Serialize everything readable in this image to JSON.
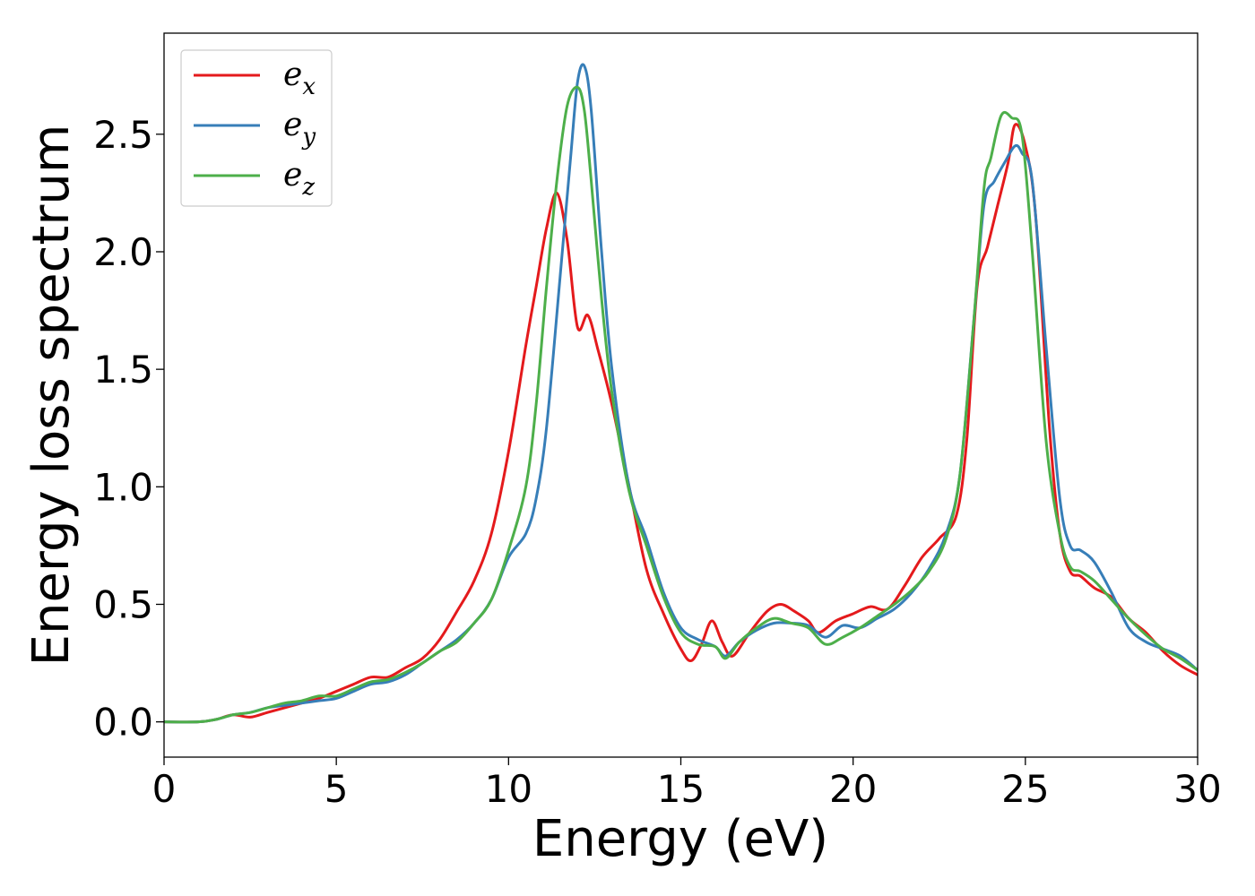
{
  "chart_data": {
    "type": "line",
    "title": "",
    "xlabel": "Energy (eV)",
    "ylabel": "Energy loss spectrum",
    "xlim": [
      0,
      30
    ],
    "ylim": [
      -0.15,
      2.93
    ],
    "xticks": [
      0,
      5,
      10,
      15,
      20,
      25,
      30
    ],
    "xtick_labels": [
      "0",
      "5",
      "10",
      "15",
      "20",
      "25",
      "30"
    ],
    "yticks": [
      0.0,
      0.5,
      1.0,
      1.5,
      2.0,
      2.5
    ],
    "ytick_labels": [
      "0.0",
      "0.5",
      "1.0",
      "1.5",
      "2.0",
      "2.5"
    ],
    "grid": false,
    "legend_position": "top-left",
    "series": [
      {
        "name": "e_x",
        "label_base": "e",
        "label_sub": "x",
        "color": "#e41a1c",
        "x": [
          0,
          1,
          1.5,
          2,
          2.5,
          3,
          3.5,
          4,
          4.5,
          5,
          5.5,
          6,
          6.5,
          7,
          7.5,
          8,
          8.5,
          9,
          9.5,
          10,
          10.5,
          10.8,
          11.1,
          11.4,
          11.7,
          12.0,
          12.3,
          12.6,
          13.0,
          13.5,
          14,
          14.5,
          15,
          15.3,
          15.6,
          15.9,
          16.2,
          16.5,
          17,
          17.5,
          17.9,
          18.3,
          18.7,
          19.0,
          19.5,
          20,
          20.5,
          21,
          21.5,
          22,
          22.5,
          23,
          23.3,
          23.6,
          23.9,
          24.2,
          24.5,
          24.7,
          25.0,
          25.3,
          25.7,
          26.0,
          26.3,
          26.6,
          27,
          27.5,
          28,
          28.5,
          29,
          29.5,
          30
        ],
        "y": [
          0.0,
          0.0,
          0.01,
          0.03,
          0.02,
          0.04,
          0.06,
          0.08,
          0.1,
          0.13,
          0.16,
          0.19,
          0.19,
          0.23,
          0.27,
          0.35,
          0.47,
          0.6,
          0.8,
          1.15,
          1.6,
          1.85,
          2.1,
          2.25,
          2.05,
          1.68,
          1.73,
          1.58,
          1.35,
          1.0,
          0.65,
          0.46,
          0.31,
          0.26,
          0.33,
          0.43,
          0.34,
          0.28,
          0.38,
          0.47,
          0.5,
          0.47,
          0.43,
          0.38,
          0.43,
          0.46,
          0.49,
          0.48,
          0.58,
          0.7,
          0.78,
          0.88,
          1.2,
          1.85,
          2.02,
          2.2,
          2.38,
          2.54,
          2.45,
          2.15,
          1.25,
          0.8,
          0.64,
          0.62,
          0.57,
          0.53,
          0.44,
          0.38,
          0.3,
          0.24,
          0.2
        ]
      },
      {
        "name": "e_y",
        "label_base": "e",
        "label_sub": "y",
        "color": "#377eb8",
        "x": [
          0,
          1,
          1.5,
          2,
          2.5,
          3,
          3.5,
          4,
          4.5,
          5,
          5.5,
          6,
          6.5,
          7,
          7.5,
          8,
          8.5,
          9,
          9.5,
          10,
          10.5,
          10.8,
          11.1,
          11.5,
          11.8,
          12.0,
          12.2,
          12.4,
          12.7,
          13.0,
          13.5,
          14,
          14.5,
          15,
          15.5,
          16,
          16.3,
          16.7,
          17.2,
          17.7,
          18.2,
          18.7,
          19.2,
          19.7,
          20.2,
          20.7,
          21.2,
          21.7,
          22.2,
          22.7,
          23.1,
          23.5,
          23.8,
          24.1,
          24.4,
          24.7,
          24.9,
          25.2,
          25.6,
          26.0,
          26.3,
          26.6,
          27,
          27.5,
          28,
          28.5,
          29,
          29.5,
          30
        ],
        "y": [
          0.0,
          0.0,
          0.01,
          0.03,
          0.04,
          0.06,
          0.07,
          0.08,
          0.09,
          0.1,
          0.13,
          0.16,
          0.17,
          0.2,
          0.25,
          0.3,
          0.35,
          0.42,
          0.52,
          0.7,
          0.8,
          0.95,
          1.25,
          1.9,
          2.4,
          2.72,
          2.79,
          2.6,
          2.0,
          1.5,
          1.0,
          0.78,
          0.55,
          0.4,
          0.35,
          0.32,
          0.28,
          0.34,
          0.39,
          0.42,
          0.42,
          0.41,
          0.36,
          0.41,
          0.4,
          0.44,
          0.48,
          0.55,
          0.65,
          0.8,
          1.05,
          1.7,
          2.2,
          2.3,
          2.38,
          2.45,
          2.42,
          2.3,
          1.6,
          0.95,
          0.75,
          0.73,
          0.68,
          0.55,
          0.4,
          0.34,
          0.31,
          0.28,
          0.22
        ]
      },
      {
        "name": "e_z",
        "label_base": "e",
        "label_sub": "z",
        "color": "#4daf4a",
        "x": [
          0,
          1,
          1.5,
          2,
          2.5,
          3,
          3.5,
          4,
          4.5,
          5,
          5.5,
          6,
          6.5,
          7,
          7.5,
          8,
          8.5,
          9,
          9.5,
          10,
          10.5,
          10.8,
          11.1,
          11.4,
          11.7,
          12.0,
          12.2,
          12.4,
          12.7,
          13.0,
          13.5,
          14,
          14.5,
          15,
          15.5,
          16,
          16.3,
          16.7,
          17.2,
          17.7,
          18.2,
          18.7,
          19.2,
          19.7,
          20.2,
          20.7,
          21.2,
          21.7,
          22.2,
          22.7,
          23.1,
          23.5,
          23.8,
          24.0,
          24.3,
          24.6,
          24.9,
          25.2,
          25.6,
          26.0,
          26.3,
          26.6,
          27,
          27.5,
          28,
          28.5,
          29,
          29.5,
          30
        ],
        "y": [
          0.0,
          0.0,
          0.01,
          0.03,
          0.04,
          0.06,
          0.08,
          0.09,
          0.11,
          0.11,
          0.14,
          0.17,
          0.18,
          0.21,
          0.25,
          0.3,
          0.34,
          0.42,
          0.52,
          0.73,
          1.0,
          1.35,
          1.85,
          2.3,
          2.62,
          2.7,
          2.6,
          2.3,
          1.8,
          1.4,
          0.98,
          0.75,
          0.53,
          0.38,
          0.33,
          0.32,
          0.27,
          0.34,
          0.4,
          0.44,
          0.42,
          0.4,
          0.33,
          0.36,
          0.4,
          0.45,
          0.5,
          0.56,
          0.64,
          0.78,
          1.05,
          1.7,
          2.27,
          2.4,
          2.58,
          2.57,
          2.5,
          2.0,
          1.2,
          0.8,
          0.66,
          0.64,
          0.6,
          0.52,
          0.44,
          0.37,
          0.31,
          0.27,
          0.22
        ]
      }
    ]
  }
}
